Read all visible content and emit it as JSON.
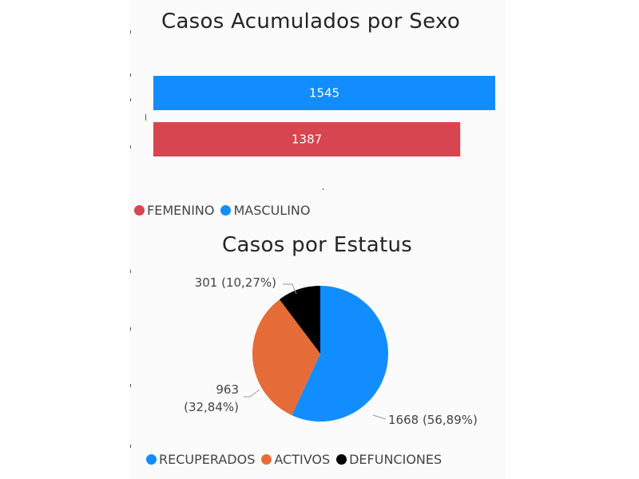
{
  "chart_data": [
    {
      "type": "bar",
      "orientation": "horizontal",
      "title": "Casos Acumulados por Sexo",
      "categories": [
        "MASCULINO",
        "FEMENINO"
      ],
      "values": [
        1545,
        1387
      ],
      "data_labels": [
        "1545",
        "1387"
      ],
      "colors": [
        "#118DFF",
        "#D64550"
      ],
      "xlim": [
        0,
        1545
      ],
      "legend": {
        "position": "bottom-left",
        "items": [
          {
            "label": "FEMENINO",
            "color": "#D64550"
          },
          {
            "label": "MASCULINO",
            "color": "#118DFF"
          }
        ]
      }
    },
    {
      "type": "pie",
      "title": "Casos por Estatus",
      "slices": [
        {
          "label": "RECUPERADOS",
          "value": 1668,
          "percent": "56,89%",
          "color": "#118DFF",
          "data_label": [
            "1668 (56,89%)"
          ]
        },
        {
          "label": "ACTIVOS",
          "value": 963,
          "percent": "32,84%",
          "color": "#E66C37",
          "data_label": [
            "963",
            "(32,84%)"
          ]
        },
        {
          "label": "DEFUNCIONES",
          "value": 301,
          "percent": "10,27%",
          "color": "#000000",
          "data_label": [
            "301 (10,27%)"
          ]
        }
      ],
      "legend": {
        "position": "bottom",
        "items": [
          {
            "label": "RECUPERADOS",
            "color": "#118DFF"
          },
          {
            "label": "ACTIVOS",
            "color": "#E66C37"
          },
          {
            "label": "DEFUNCIONES",
            "color": "#000000"
          }
        ]
      }
    }
  ]
}
